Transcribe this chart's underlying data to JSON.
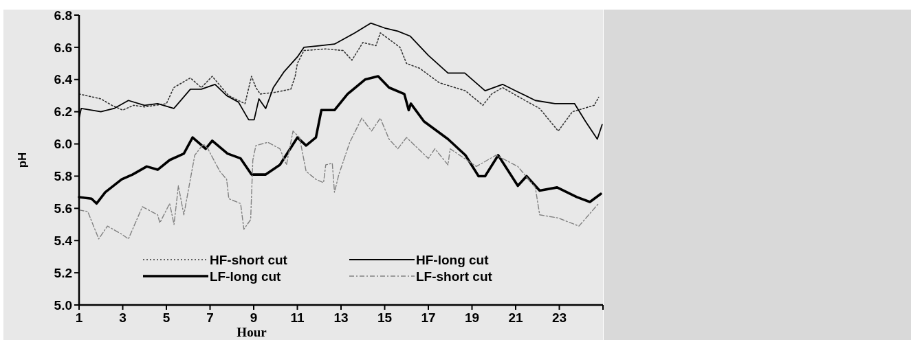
{
  "chart_data": {
    "type": "line",
    "xlabel": "Hour",
    "ylabel": "pH",
    "xlim": [
      1,
      25
    ],
    "ylim": [
      5.0,
      6.8
    ],
    "xticks": [
      1,
      3,
      5,
      7,
      9,
      11,
      13,
      15,
      17,
      19,
      21,
      23,
      {
        "value": 25,
        "label": null
      }
    ],
    "yticks": [
      {
        "value": 5,
        "label": "5.0"
      },
      5.2,
      5.4,
      5.6,
      5.8,
      {
        "value": 6,
        "label": "6.0"
      },
      6.2,
      6.4,
      6.6,
      6.8
    ],
    "legend": "bottom",
    "grid": false,
    "marker": "none",
    "series": [
      {
        "name": "HF-short cut",
        "color": "#333333",
        "line_style": "dotted",
        "x": [
          1,
          2,
          2.5,
          3,
          3.5,
          4,
          5,
          5.34,
          6.1,
          6.6,
          7.1,
          7.85,
          8.6,
          8.9,
          9.1,
          9.3,
          9.96,
          10.7,
          10.9,
          11.0,
          11.3,
          12.3,
          13.1,
          13.5,
          14.0,
          14.6,
          14.8,
          15.7,
          16.0,
          16.6,
          17.5,
          18.7,
          19.5,
          19.9,
          20.4,
          21.3,
          22.1,
          22.95,
          23.6,
          24.6,
          24.8
        ],
        "values": [
          6.31,
          6.28,
          6.24,
          6.21,
          6.24,
          6.23,
          6.25,
          6.35,
          6.41,
          6.35,
          6.42,
          6.3,
          6.25,
          6.42,
          6.35,
          6.31,
          6.32,
          6.34,
          6.42,
          6.5,
          6.58,
          6.59,
          6.58,
          6.52,
          6.63,
          6.61,
          6.69,
          6.6,
          6.5,
          6.47,
          6.38,
          6.33,
          6.24,
          6.31,
          6.35,
          6.28,
          6.22,
          6.08,
          6.2,
          6.24,
          6.29
        ]
      },
      {
        "name": "HF-long cut",
        "color": "#000000",
        "line_style": "solid",
        "x": [
          1,
          1.1,
          2,
          2.6,
          3.26,
          4,
          4.6,
          5.34,
          6.1,
          6.6,
          7.23,
          7.76,
          8.3,
          8.77,
          9.02,
          9.24,
          9.55,
          9.9,
          10.4,
          11.0,
          11.3,
          12.0,
          12.7,
          13.64,
          14.36,
          15.0,
          15.6,
          16.16,
          17.0,
          17.9,
          18.67,
          19.6,
          20.4,
          21.0,
          21.9,
          22.8,
          23.7,
          24.2,
          24.74,
          24.96
        ],
        "values": [
          6.16,
          6.22,
          6.2,
          6.22,
          6.27,
          6.24,
          6.25,
          6.22,
          6.34,
          6.34,
          6.37,
          6.3,
          6.26,
          6.15,
          6.15,
          6.28,
          6.22,
          6.35,
          6.45,
          6.54,
          6.6,
          6.61,
          6.62,
          6.69,
          6.75,
          6.72,
          6.7,
          6.67,
          6.55,
          6.44,
          6.44,
          6.33,
          6.37,
          6.33,
          6.27,
          6.25,
          6.25,
          6.14,
          6.03,
          6.12
        ]
      },
      {
        "name": "LF-long cut",
        "color": "#000000",
        "line_style": "solid",
        "x": [
          1,
          1.57,
          1.8,
          2.2,
          2.95,
          3.45,
          4.1,
          4.6,
          5.15,
          5.8,
          6.2,
          6.8,
          7.1,
          7.8,
          8.4,
          8.9,
          9.55,
          10.2,
          11.0,
          11.4,
          11.85,
          12.1,
          12.7,
          13.3,
          14.1,
          14.7,
          15.2,
          15.9,
          16.1,
          16.2,
          16.8,
          17.9,
          18.7,
          19.3,
          19.6,
          20.2,
          21.1,
          21.5,
          22.1,
          22.9,
          23.8,
          24.4,
          24.9
        ],
        "values": [
          5.67,
          5.66,
          5.63,
          5.7,
          5.78,
          5.81,
          5.86,
          5.84,
          5.9,
          5.94,
          6.04,
          5.97,
          6.02,
          5.94,
          5.91,
          5.81,
          5.81,
          5.87,
          6.04,
          5.99,
          6.04,
          6.21,
          6.21,
          6.31,
          6.4,
          6.42,
          6.35,
          6.31,
          6.21,
          6.25,
          6.14,
          6.03,
          5.93,
          5.8,
          5.8,
          5.93,
          5.74,
          5.8,
          5.71,
          5.73,
          5.67,
          5.64,
          5.69
        ]
      },
      {
        "name": "LF-short cut",
        "color": "#808080",
        "line_style": "dashed",
        "x": [
          1,
          1.4,
          1.9,
          2.3,
          2.95,
          3.26,
          3.9,
          4.6,
          4.7,
          5.15,
          5.35,
          5.55,
          5.8,
          6.3,
          6.7,
          6.9,
          7.45,
          7.76,
          7.86,
          8.4,
          8.55,
          8.86,
          8.96,
          9.1,
          9.65,
          10.2,
          10.5,
          10.8,
          11.1,
          11.4,
          11.85,
          12.2,
          12.3,
          12.6,
          12.7,
          12.9,
          13.4,
          13.95,
          14.4,
          14.8,
          15.2,
          15.6,
          16.0,
          17.0,
          17.3,
          17.9,
          18.0,
          19.2,
          20.1,
          21.1,
          21.9,
          22.1,
          22.95,
          23.9,
          24.8
        ],
        "values": [
          5.59,
          5.58,
          5.41,
          5.49,
          5.44,
          5.41,
          5.61,
          5.56,
          5.51,
          5.63,
          5.5,
          5.74,
          5.56,
          5.93,
          6.0,
          5.97,
          5.83,
          5.78,
          5.66,
          5.63,
          5.47,
          5.53,
          5.9,
          5.99,
          6.01,
          5.97,
          5.87,
          6.08,
          6.04,
          5.83,
          5.78,
          5.76,
          5.87,
          5.88,
          5.7,
          5.81,
          6.01,
          6.16,
          6.08,
          6.16,
          6.03,
          5.97,
          6.04,
          5.91,
          5.97,
          5.87,
          5.97,
          5.86,
          5.93,
          5.86,
          5.73,
          5.56,
          5.54,
          5.49,
          5.63
        ]
      }
    ]
  }
}
